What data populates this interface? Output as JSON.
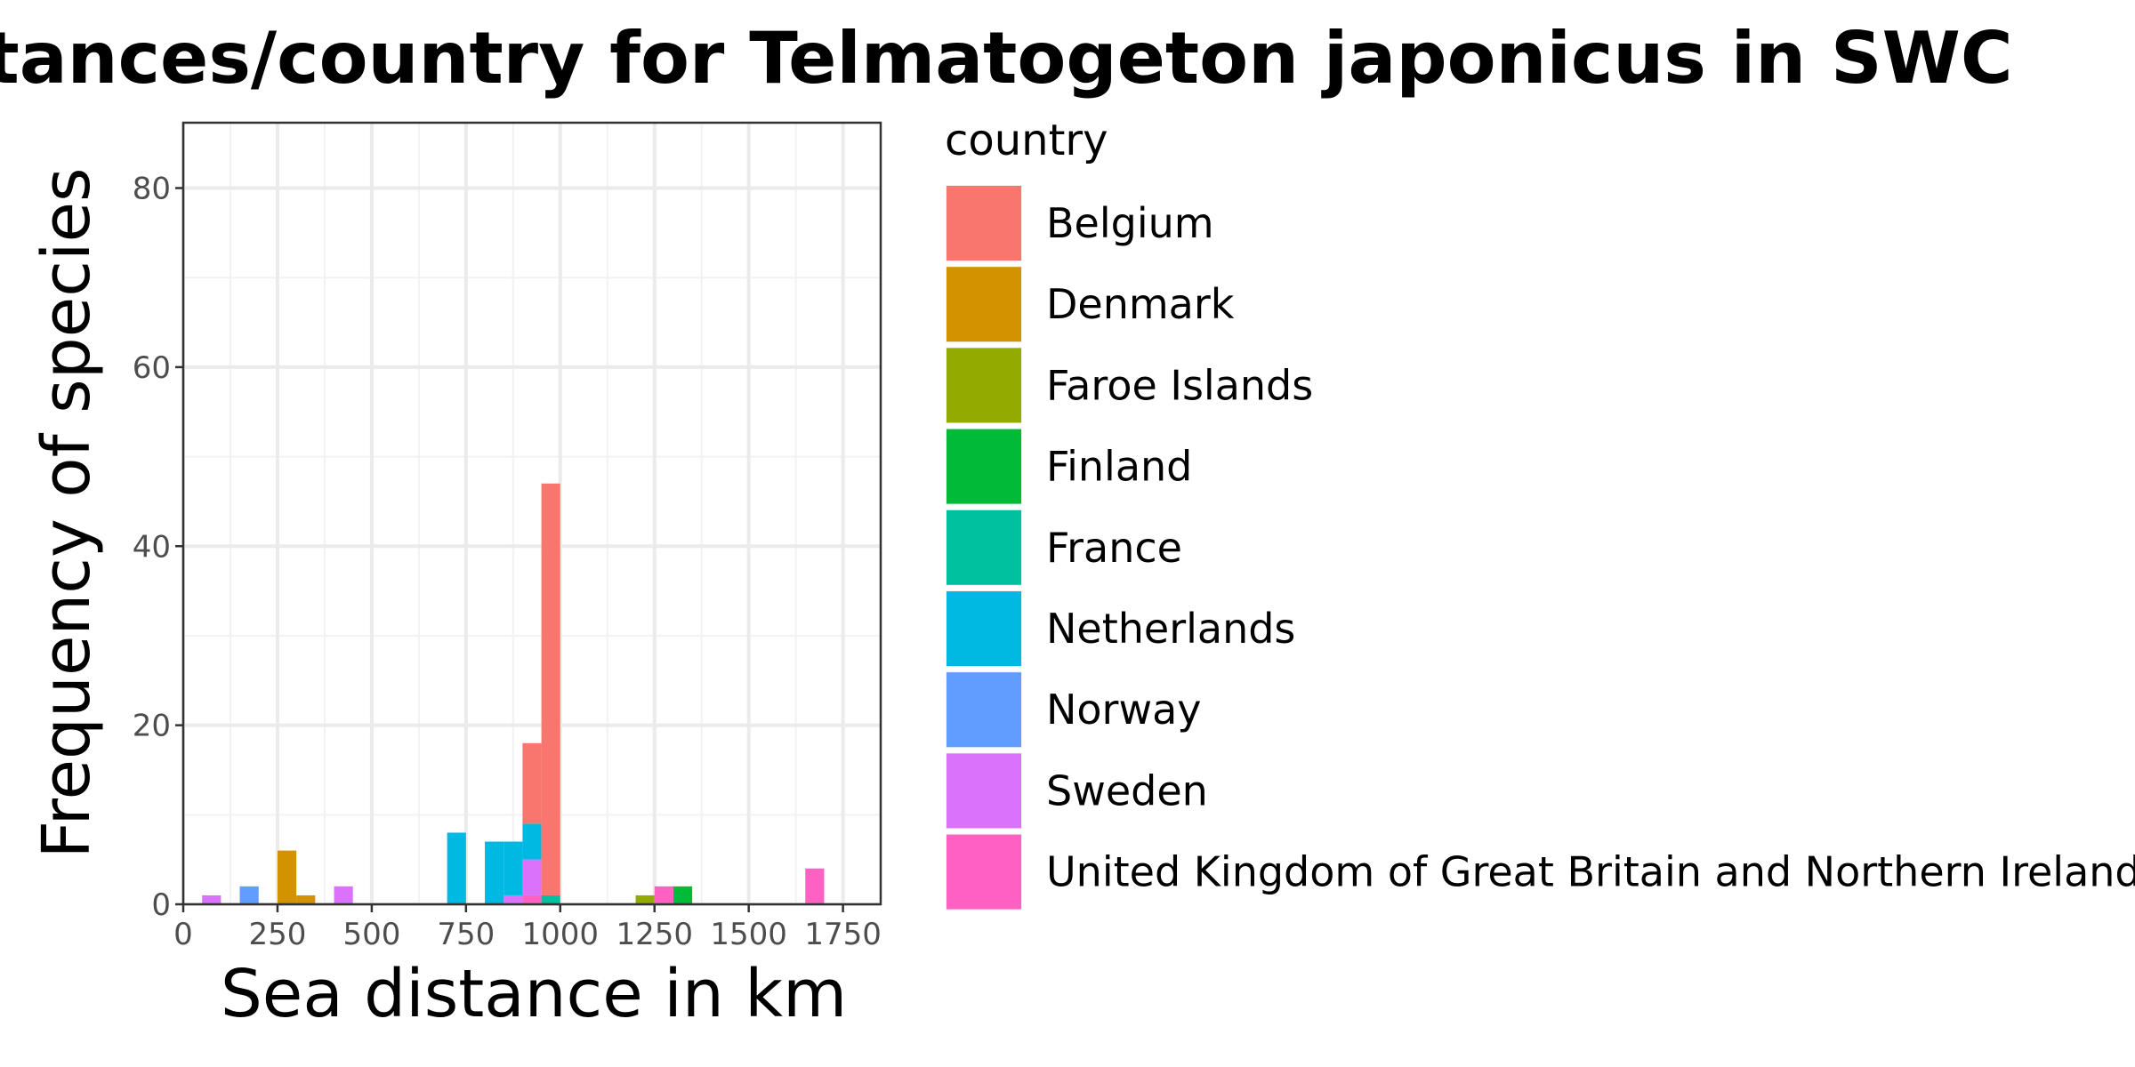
{
  "chart_data": {
    "type": "bar",
    "title": "Sea distances/country for Telmatogeton japonicus in SWC",
    "xlabel": "Sea distance in km",
    "ylabel": "Frequency of species",
    "xlim": [
      0,
      1850
    ],
    "ylim": [
      0,
      80
    ],
    "x_ticks": [
      0,
      250,
      500,
      750,
      1000,
      1250,
      1500,
      1750
    ],
    "y_ticks": [
      0,
      20,
      40,
      60,
      80
    ],
    "bin_width": 50,
    "stacked": true,
    "grid": true,
    "legend": {
      "title": "country",
      "position": "right"
    },
    "series": [
      {
        "name": "Belgium",
        "color": "#F8766D",
        "points": [
          {
            "x": 925,
            "y": 9
          },
          {
            "x": 975,
            "y": 46
          }
        ]
      },
      {
        "name": "Denmark",
        "color": "#D39200",
        "points": [
          {
            "x": 275,
            "y": 6
          },
          {
            "x": 325,
            "y": 1
          }
        ]
      },
      {
        "name": "Faroe Islands",
        "color": "#93AA00",
        "points": [
          {
            "x": 1225,
            "y": 1
          }
        ]
      },
      {
        "name": "Finland",
        "color": "#00BA38",
        "points": [
          {
            "x": 1325,
            "y": 2
          }
        ]
      },
      {
        "name": "France",
        "color": "#00C19F",
        "points": [
          {
            "x": 975,
            "y": 1
          }
        ]
      },
      {
        "name": "Netherlands",
        "color": "#00B9E3",
        "points": [
          {
            "x": 725,
            "y": 8
          },
          {
            "x": 825,
            "y": 7
          },
          {
            "x": 875,
            "y": 6
          },
          {
            "x": 925,
            "y": 4
          }
        ]
      },
      {
        "name": "Norway",
        "color": "#619CFF",
        "points": [
          {
            "x": 175,
            "y": 2
          }
        ]
      },
      {
        "name": "Sweden",
        "color": "#DB72FB",
        "points": [
          {
            "x": 75,
            "y": 1
          },
          {
            "x": 425,
            "y": 2
          },
          {
            "x": 875,
            "y": 1
          },
          {
            "x": 925,
            "y": 4
          }
        ]
      },
      {
        "name": "United Kingdom of Great Britain and Northern Ireland",
        "color": "#FF61C3",
        "points": [
          {
            "x": 925,
            "y": 1
          },
          {
            "x": 1275,
            "y": 2
          },
          {
            "x": 1675,
            "y": 4
          }
        ]
      }
    ]
  }
}
